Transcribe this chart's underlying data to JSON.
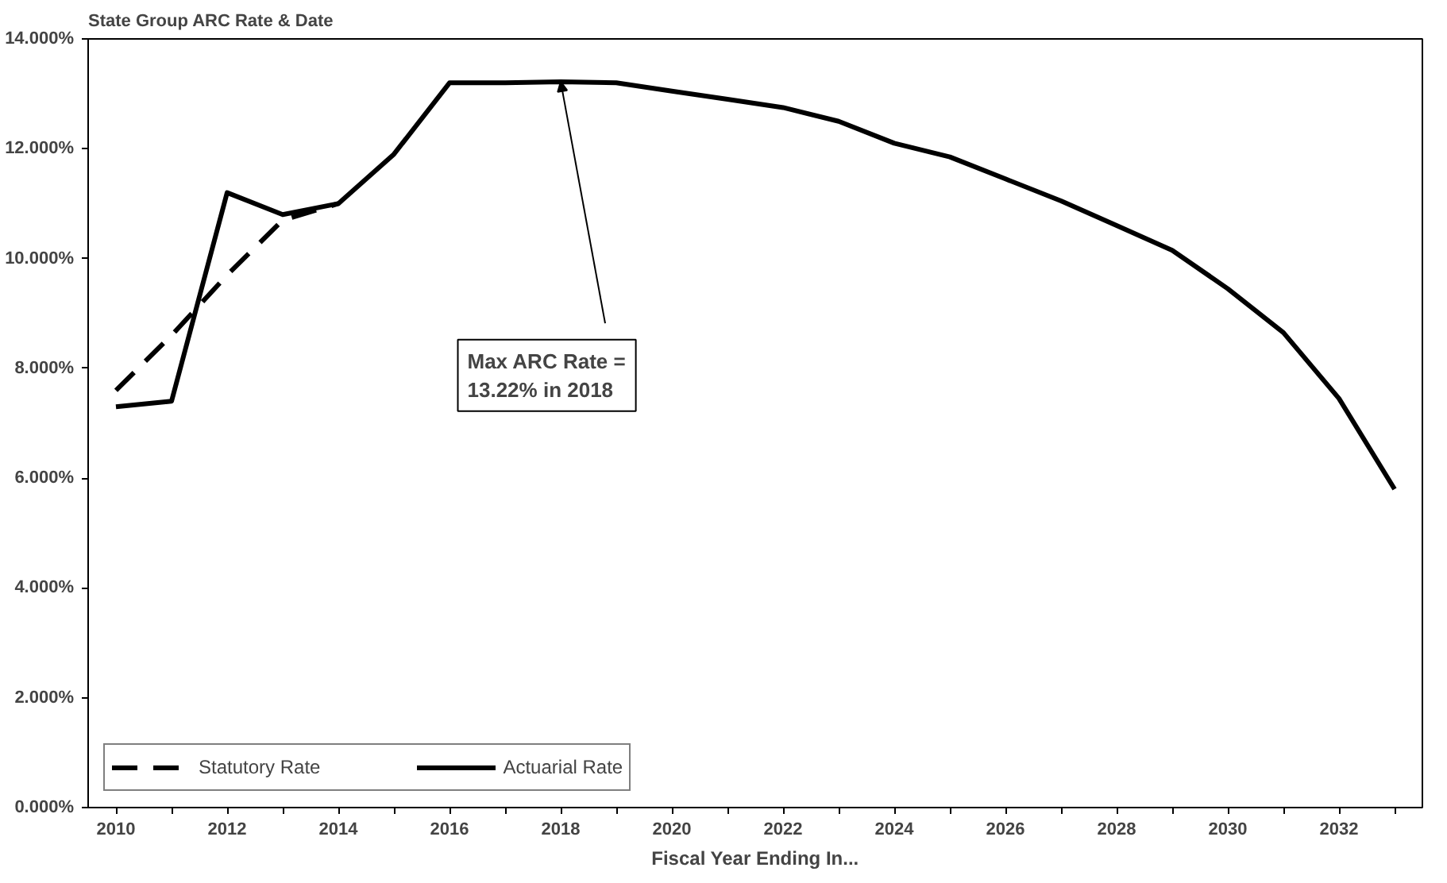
{
  "chart_data": {
    "type": "line",
    "title": "State Group ARC Rate & Date",
    "xlabel": "Fiscal Year Ending In...",
    "x": [
      2010,
      2011,
      2012,
      2013,
      2014,
      2015,
      2016,
      2017,
      2018,
      2019,
      2020,
      2021,
      2022,
      2023,
      2024,
      2025,
      2026,
      2027,
      2028,
      2029,
      2030,
      2031,
      2032,
      2033
    ],
    "series": [
      {
        "name": "Statutory Rate",
        "color": "#000000",
        "line_style": "dashed",
        "x": [
          2010,
          2011,
          2012,
          2013,
          2014
        ],
        "values": [
          7.6,
          8.6,
          9.7,
          10.7,
          11.0
        ]
      },
      {
        "name": "Actuarial Rate",
        "color": "#000000",
        "line_style": "solid",
        "values": [
          7.3,
          7.4,
          11.2,
          10.8,
          11.0,
          11.9,
          13.2,
          13.2,
          13.22,
          13.2,
          13.05,
          12.9,
          12.75,
          12.5,
          12.1,
          11.85,
          11.45,
          11.05,
          10.6,
          10.15,
          9.45,
          8.65,
          7.45,
          5.8
        ]
      }
    ],
    "xlim": [
      2009.5,
      2033.5
    ],
    "xticks": [
      2010,
      {
        "value": 2011,
        "label": null
      },
      2012,
      {
        "value": 2013,
        "label": null
      },
      2014,
      {
        "value": 2015,
        "label": null
      },
      2016,
      {
        "value": 2017,
        "label": null
      },
      2018,
      {
        "value": 2019,
        "label": null
      },
      2020,
      {
        "value": 2021,
        "label": null
      },
      2022,
      {
        "value": 2023,
        "label": null
      },
      2024,
      {
        "value": 2025,
        "label": null
      },
      2026,
      {
        "value": 2027,
        "label": null
      },
      2028,
      {
        "value": 2029,
        "label": null
      },
      2030,
      {
        "value": 2031,
        "label": null
      },
      2032,
      {
        "value": 2033,
        "label": null
      }
    ],
    "ylim": [
      0,
      14
    ],
    "yticks": [
      {
        "value": 0,
        "label": "0.000%"
      },
      {
        "value": 2,
        "label": "2.000%"
      },
      {
        "value": 4,
        "label": "4.000%"
      },
      {
        "value": 6,
        "label": "6.000%"
      },
      {
        "value": 8,
        "label": "8.000%"
      },
      {
        "value": 10,
        "label": "10.000%"
      },
      {
        "value": 12,
        "label": "12.000%"
      },
      {
        "value": 14,
        "label": "14.000%"
      }
    ],
    "annotations": [
      {
        "text": "Max ARC Rate =\n13.22% in 2018",
        "x": 2018,
        "y": 13.22
      }
    ],
    "grid": false,
    "legend": "bottom left",
    "marker": "none"
  }
}
